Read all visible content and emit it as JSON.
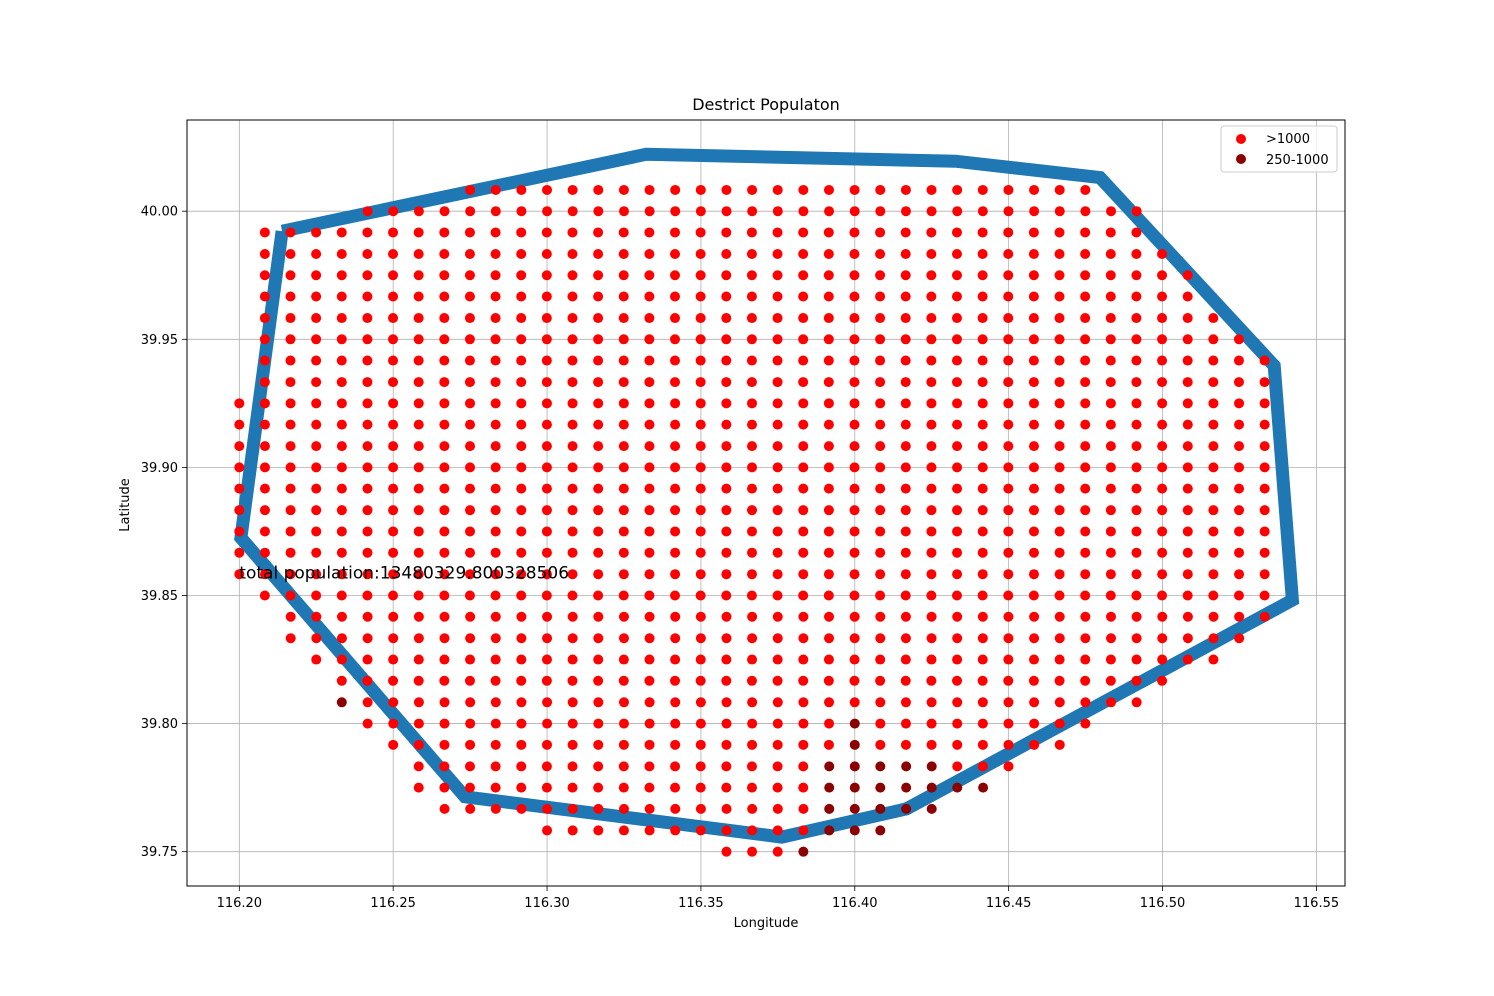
{
  "chart_data": {
    "type": "scatter",
    "title": "Destrict Populaton",
    "xlabel": "Longitude",
    "ylabel": "Latitude",
    "xlim": [
      116.183,
      116.5593
    ],
    "ylim": [
      39.7366,
      40.0356
    ],
    "xticks": [
      116.2,
      116.25,
      116.3,
      116.35,
      116.4,
      116.45,
      116.5,
      116.55
    ],
    "xtick_labels": [
      "116.20",
      "116.25",
      "116.30",
      "116.35",
      "116.40",
      "116.45",
      "116.50",
      "116.55"
    ],
    "yticks": [
      39.75,
      39.8,
      39.85,
      39.9,
      39.95,
      40.0
    ],
    "ytick_labels": [
      "39.75",
      "39.80",
      "39.85",
      "39.90",
      "39.95",
      "40.00"
    ],
    "grid": true,
    "legend_position": "upper right",
    "annotation": {
      "text": "total population:13480329.800328506",
      "x": 116.2,
      "y": 39.859
    },
    "boundary": {
      "color": "#1f77b4",
      "points": [
        [
          116.2139,
          39.9922
        ],
        [
          116.3322,
          40.0222
        ],
        [
          116.4327,
          40.0195
        ],
        [
          116.4797,
          40.0131
        ],
        [
          116.5363,
          39.9397
        ],
        [
          116.5422,
          39.8482
        ],
        [
          116.4168,
          39.7667
        ],
        [
          116.3763,
          39.7557
        ],
        [
          116.2733,
          39.7714
        ],
        [
          116.2005,
          39.8725
        ],
        [
          116.2139,
          39.9922
        ]
      ]
    },
    "grid_spacing": {
      "x": 0.00833,
      "y": 0.00833
    },
    "series": [
      {
        "name": ">1000",
        "color": "#ff0000",
        "rows": [
          {
            "y": 40.0083,
            "x": [
              [
                116.275,
                116.475
              ]
            ]
          },
          {
            "y": 40.0,
            "x": [
              [
                116.2417,
                116.4917
              ]
            ]
          },
          {
            "y": 39.9917,
            "x": [
              [
                116.2083,
                116.4917
              ]
            ]
          },
          {
            "y": 39.9833,
            "x": [
              [
                116.2083,
                116.5
              ]
            ]
          },
          {
            "y": 39.975,
            "x": [
              [
                116.2083,
                116.5083
              ]
            ]
          },
          {
            "y": 39.9667,
            "x": [
              [
                116.2083,
                116.5083
              ]
            ]
          },
          {
            "y": 39.9583,
            "x": [
              [
                116.2083,
                116.5167
              ]
            ]
          },
          {
            "y": 39.95,
            "x": [
              [
                116.2083,
                116.525
              ]
            ]
          },
          {
            "y": 39.9417,
            "x": [
              [
                116.2083,
                116.5333
              ]
            ]
          },
          {
            "y": 39.9333,
            "x": [
              [
                116.2083,
                116.5333
              ]
            ]
          },
          {
            "y": 39.925,
            "x": [
              [
                116.2,
                116.5333
              ]
            ]
          },
          {
            "y": 39.9167,
            "x": [
              [
                116.2,
                116.5333
              ]
            ]
          },
          {
            "y": 39.9083,
            "x": [
              [
                116.2,
                116.5333
              ]
            ]
          },
          {
            "y": 39.9,
            "x": [
              [
                116.2,
                116.5333
              ]
            ]
          },
          {
            "y": 39.8917,
            "x": [
              [
                116.2,
                116.5333
              ]
            ]
          },
          {
            "y": 39.8833,
            "x": [
              [
                116.2,
                116.5333
              ]
            ]
          },
          {
            "y": 39.875,
            "x": [
              [
                116.2,
                116.5333
              ]
            ]
          },
          {
            "y": 39.8667,
            "x": [
              [
                116.2,
                116.5333
              ]
            ]
          },
          {
            "y": 39.8583,
            "x": [
              [
                116.2,
                116.5333
              ]
            ]
          },
          {
            "y": 39.85,
            "x": [
              [
                116.2083,
                116.5333
              ]
            ]
          },
          {
            "y": 39.8417,
            "x": [
              [
                116.2167,
                116.5333
              ]
            ]
          },
          {
            "y": 39.8333,
            "x": [
              [
                116.2167,
                116.525
              ]
            ]
          },
          {
            "y": 39.825,
            "x": [
              [
                116.225,
                116.5167
              ]
            ]
          },
          {
            "y": 39.8167,
            "x": [
              [
                116.2333,
                116.5
              ]
            ]
          },
          {
            "y": 39.8083,
            "x": [
              [
                116.2417,
                116.4917
              ]
            ]
          },
          {
            "y": 39.8,
            "x": [
              [
                116.2417,
                116.3917
              ],
              [
                116.4083,
                116.475
              ]
            ]
          },
          {
            "y": 39.7917,
            "x": [
              [
                116.25,
                116.3917
              ],
              [
                116.4083,
                116.4667
              ]
            ]
          },
          {
            "y": 39.7833,
            "x": [
              [
                116.2583,
                116.3833
              ],
              [
                116.4333,
                116.45
              ]
            ]
          },
          {
            "y": 39.775,
            "x": [
              [
                116.2583,
                116.3833
              ]
            ]
          },
          {
            "y": 39.7667,
            "x": [
              [
                116.2667,
                116.3833
              ]
            ]
          },
          {
            "y": 39.7583,
            "x": [
              [
                116.3,
                116.3833
              ]
            ]
          },
          {
            "y": 39.75,
            "x": [
              [
                116.3583,
                116.375
              ]
            ]
          }
        ]
      },
      {
        "name": "250-1000",
        "color": "#8b0000",
        "points": [
          [
            116.2333,
            39.8083
          ],
          [
            116.4,
            39.8
          ],
          [
            116.4,
            39.7917
          ],
          [
            116.3917,
            39.7833
          ],
          [
            116.4,
            39.7833
          ],
          [
            116.4083,
            39.7833
          ],
          [
            116.4167,
            39.7833
          ],
          [
            116.425,
            39.7833
          ],
          [
            116.3917,
            39.775
          ],
          [
            116.4,
            39.775
          ],
          [
            116.4083,
            39.775
          ],
          [
            116.4167,
            39.775
          ],
          [
            116.425,
            39.775
          ],
          [
            116.4333,
            39.775
          ],
          [
            116.4417,
            39.775
          ],
          [
            116.3917,
            39.7667
          ],
          [
            116.4,
            39.7667
          ],
          [
            116.4083,
            39.7667
          ],
          [
            116.4167,
            39.7667
          ],
          [
            116.425,
            39.7667
          ],
          [
            116.3917,
            39.7583
          ],
          [
            116.4,
            39.7583
          ],
          [
            116.4083,
            39.7583
          ],
          [
            116.3833,
            39.75
          ]
        ]
      }
    ]
  }
}
